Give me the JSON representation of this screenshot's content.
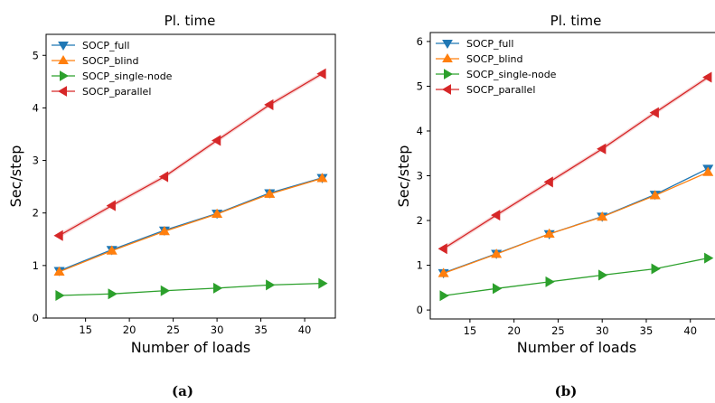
{
  "colors": {
    "SOCP_full": "#1f77b4",
    "SOCP_blind": "#ff7f0e",
    "SOCP_single-node": "#2ca02c",
    "SOCP_parallel": "#d62728"
  },
  "chart_data": [
    {
      "type": "line",
      "caption": "(a)",
      "title": "Pl. time",
      "xlabel": "Number of loads",
      "ylabel": "Sec/step",
      "xlim": [
        10.5,
        43.5
      ],
      "ylim": [
        0,
        5.4
      ],
      "xticks": [
        15,
        20,
        25,
        30,
        35,
        40
      ],
      "yticks": [
        0,
        1,
        2,
        3,
        4,
        5
      ],
      "grid": false,
      "legend": "top-left",
      "x": [
        12,
        18,
        24,
        30,
        36,
        42
      ],
      "series": [
        {
          "name": "SOCP_full",
          "marker": "triangle-down",
          "values": [
            0.9,
            1.3,
            1.67,
            1.99,
            2.38,
            2.67
          ]
        },
        {
          "name": "SOCP_blind",
          "marker": "triangle-up",
          "values": [
            0.88,
            1.28,
            1.65,
            1.98,
            2.36,
            2.66
          ]
        },
        {
          "name": "SOCP_single-node",
          "marker": "triangle-right",
          "values": [
            0.43,
            0.46,
            0.52,
            0.57,
            0.63,
            0.66
          ]
        },
        {
          "name": "SOCP_parallel",
          "marker": "triangle-left",
          "values": [
            1.57,
            2.14,
            2.69,
            3.38,
            4.06,
            4.65
          ]
        }
      ]
    },
    {
      "type": "line",
      "caption": "(b)",
      "title": "Pl. time",
      "xlabel": "Number of loads",
      "ylabel": "Sec/step",
      "xlim": [
        10.5,
        43.0
      ],
      "ylim": [
        -0.2,
        6.2
      ],
      "xticks": [
        15,
        20,
        25,
        30,
        35,
        40
      ],
      "yticks": [
        0,
        1,
        2,
        3,
        4,
        5,
        6
      ],
      "grid": false,
      "legend": "top-left",
      "x": [
        12,
        18,
        24,
        30,
        36,
        42
      ],
      "series": [
        {
          "name": "SOCP_full",
          "marker": "triangle-down",
          "values": [
            0.83,
            1.26,
            1.7,
            2.09,
            2.58,
            3.16
          ]
        },
        {
          "name": "SOCP_blind",
          "marker": "triangle-up",
          "values": [
            0.82,
            1.25,
            1.7,
            2.08,
            2.56,
            3.08
          ]
        },
        {
          "name": "SOCP_single-node",
          "marker": "triangle-right",
          "values": [
            0.32,
            0.48,
            0.63,
            0.78,
            0.92,
            1.16
          ]
        },
        {
          "name": "SOCP_parallel",
          "marker": "triangle-left",
          "values": [
            1.37,
            2.12,
            2.86,
            3.6,
            4.41,
            5.2
          ]
        }
      ]
    }
  ]
}
